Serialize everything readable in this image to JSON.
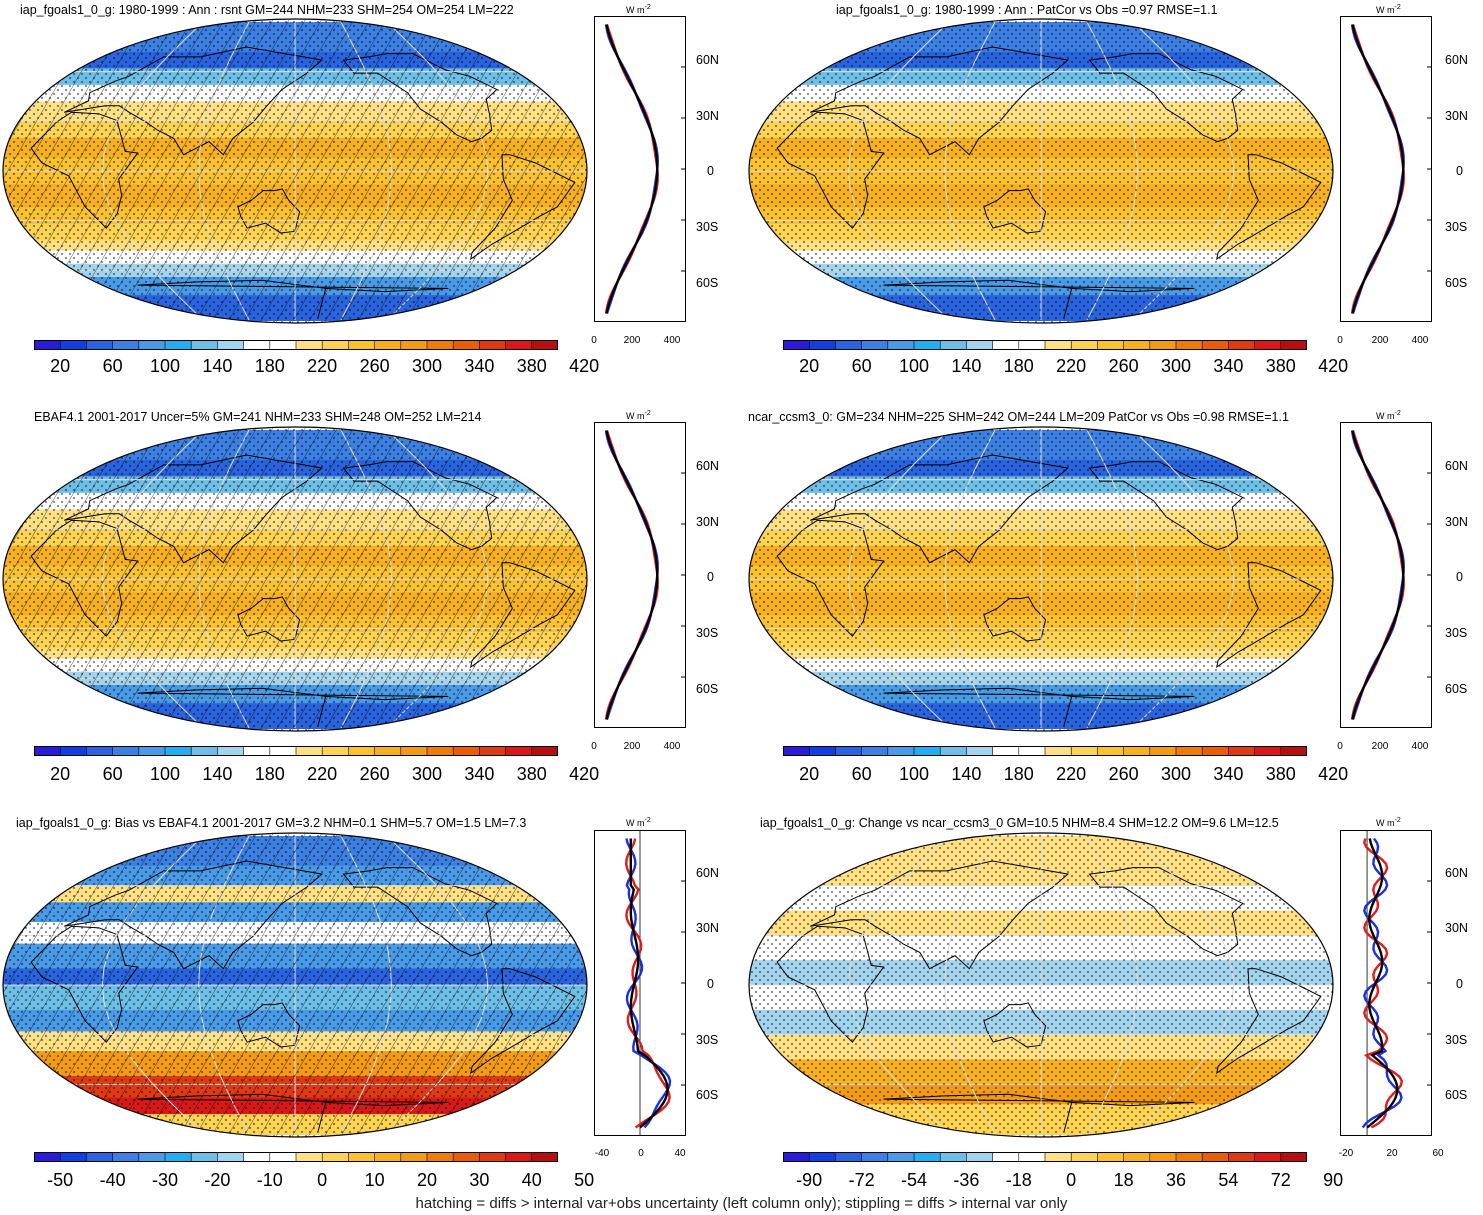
{
  "footer": "hatching = diffs > internal var+obs uncertainty (left column only); stippling = diffs > internal var only",
  "zonal_unit": "W m",
  "zonal_unit_exp": "-2",
  "lat_labels": [
    "60N",
    "30N",
    "0",
    "30S",
    "60S"
  ],
  "colorscales": {
    "abs": [
      "#2b1bd8",
      "#1040e0",
      "#2a63de",
      "#3d80e3",
      "#4a9be7",
      "#22aef0",
      "#6ebfe8",
      "#a2d4ee",
      "#ffffff",
      "#ffffff",
      "#ffe184",
      "#fcd352",
      "#f9c22e",
      "#f6b020",
      "#f39b14",
      "#ec7d0c",
      "#e85e06",
      "#e03a12",
      "#d9181a",
      "#b50f14"
    ],
    "diff": [
      "#2b1bd8",
      "#1040e0",
      "#2a63de",
      "#3d80e3",
      "#4a9be7",
      "#22aef0",
      "#6ebfe8",
      "#a2d4ee",
      "#ffffff",
      "#ffffff",
      "#ffe184",
      "#fcd352",
      "#f9c22e",
      "#f6b020",
      "#f39b14",
      "#ec7d0c",
      "#e85e06",
      "#e03a12",
      "#d9181a",
      "#b50f14"
    ]
  },
  "panels": [
    {
      "title": "iap_fgoals1_0_g: 1980-1999 : Ann : rsnt GM=244 NHM=233 SHM=254 OM=254 LM=222",
      "scale": "abs",
      "hatch": true,
      "colorbar_labels": [
        "20",
        "60",
        "100",
        "140",
        "180",
        "220",
        "260",
        "300",
        "340",
        "380",
        "420"
      ],
      "zonal_xticks": [
        "0",
        "200",
        "400"
      ]
    },
    {
      "title": "iap_fgoals1_0_g: 1980-1999 : Ann : PatCor vs Obs =0.97 RMSE=1.1",
      "scale": "abs",
      "hatch": false,
      "colorbar_labels": [
        "20",
        "60",
        "100",
        "140",
        "180",
        "220",
        "260",
        "300",
        "340",
        "380",
        "420"
      ],
      "zonal_xticks": [
        "0",
        "200",
        "400"
      ]
    },
    {
      "title": "EBAF4.1 2001-2017 Uncer=5% GM=241 NHM=233 SHM=248 OM=252 LM=214",
      "scale": "abs",
      "hatch": true,
      "colorbar_labels": [
        "20",
        "60",
        "100",
        "140",
        "180",
        "220",
        "260",
        "300",
        "340",
        "380",
        "420"
      ],
      "zonal_xticks": [
        "0",
        "200",
        "400"
      ]
    },
    {
      "title": "ncar_ccsm3_0: GM=234 NHM=225 SHM=242 OM=244 LM=209 PatCor vs Obs =0.98 RMSE=1.1",
      "scale": "abs",
      "hatch": false,
      "colorbar_labels": [
        "20",
        "60",
        "100",
        "140",
        "180",
        "220",
        "260",
        "300",
        "340",
        "380",
        "420"
      ],
      "zonal_xticks": [
        "0",
        "200",
        "400"
      ]
    },
    {
      "title": "iap_fgoals1_0_g: Bias vs EBAF4.1 2001-2017 GM=3.2 NHM=0.1 SHM=5.7 OM=1.5 LM=7.3",
      "scale": "diff",
      "hatch": true,
      "colorbar_labels": [
        "-50",
        "-40",
        "-30",
        "-20",
        "-10",
        "0",
        "10",
        "20",
        "30",
        "40",
        "50"
      ],
      "zonal_xticks": [
        "-40",
        "0",
        "40"
      ]
    },
    {
      "title": "iap_fgoals1_0_g: Change vs ncar_ccsm3_0 GM=10.5 NHM=8.4 SHM=12.2 OM=9.6 LM=12.5",
      "scale": "diff",
      "hatch": false,
      "colorbar_labels": [
        "-90",
        "-72",
        "-54",
        "-36",
        "-18",
        "0",
        "18",
        "36",
        "54",
        "72",
        "90"
      ],
      "zonal_xticks": [
        "-20",
        "20",
        "60"
      ]
    }
  ]
}
